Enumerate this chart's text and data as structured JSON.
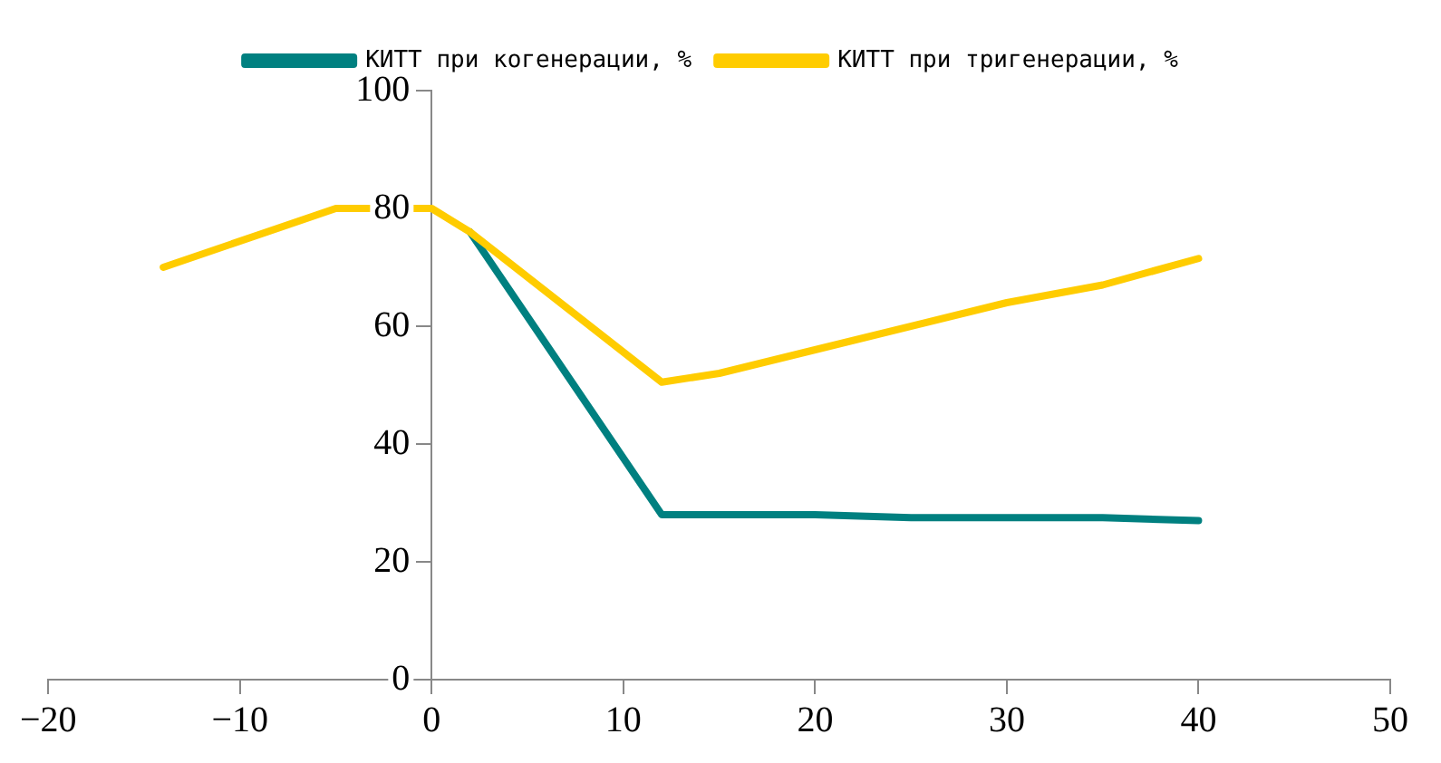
{
  "chart_data": {
    "type": "line",
    "series": [
      {
        "name": "КИТТ при когенерации, %",
        "color": "#008080",
        "x": [
          2,
          12,
          20,
          25,
          35,
          40
        ],
        "values": [
          76,
          28,
          28,
          27.5,
          27.5,
          27
        ]
      },
      {
        "name": "КИТТ при тригенерации, %",
        "color": "#ffcc00",
        "x": [
          -14,
          -5,
          0,
          2,
          12,
          15,
          20,
          30,
          35,
          40
        ],
        "values": [
          70,
          80,
          80,
          76,
          50.5,
          52,
          56,
          64,
          67,
          71.5
        ]
      }
    ],
    "xlim": [
      -20,
      50
    ],
    "xticks": [
      -20,
      -10,
      0,
      10,
      20,
      30,
      40,
      50
    ],
    "ylim": [
      0,
      100
    ],
    "yticks": [
      0,
      20,
      40,
      60,
      80,
      100
    ],
    "grid": false,
    "legend": "top",
    "marker": "none",
    "line_style": "solid"
  }
}
